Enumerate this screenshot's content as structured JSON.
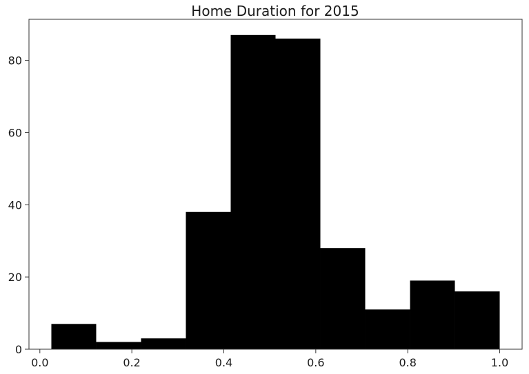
{
  "chart_data": {
    "type": "bar",
    "subtype": "histogram",
    "title": "Home Duration for 2015",
    "xlabel": "",
    "ylabel": "",
    "bins": [
      {
        "x0": 0.025,
        "x1": 0.1225,
        "count": 7
      },
      {
        "x0": 0.1225,
        "x1": 0.22,
        "count": 2
      },
      {
        "x0": 0.22,
        "x1": 0.3175,
        "count": 3
      },
      {
        "x0": 0.3175,
        "x1": 0.415,
        "count": 38
      },
      {
        "x0": 0.415,
        "x1": 0.5125,
        "count": 87
      },
      {
        "x0": 0.5125,
        "x1": 0.61,
        "count": 86
      },
      {
        "x0": 0.61,
        "x1": 0.7075,
        "count": 28
      },
      {
        "x0": 0.7075,
        "x1": 0.805,
        "count": 11
      },
      {
        "x0": 0.805,
        "x1": 0.9025,
        "count": 19
      },
      {
        "x0": 0.9025,
        "x1": 1.0,
        "count": 16
      }
    ],
    "xlim": [
      -0.0237,
      1.0487
    ],
    "ylim": [
      0,
      91.35
    ],
    "xticks": [
      "0.0",
      "0.2",
      "0.4",
      "0.6",
      "0.8",
      "1.0"
    ],
    "xtick_values": [
      0.0,
      0.2,
      0.4,
      0.6,
      0.8,
      1.0
    ],
    "yticks": [
      "0",
      "20",
      "40",
      "60",
      "80"
    ],
    "ytick_values": [
      0,
      20,
      40,
      60,
      80
    ],
    "bar_color": "#000000",
    "grid": false,
    "legend": "none"
  }
}
